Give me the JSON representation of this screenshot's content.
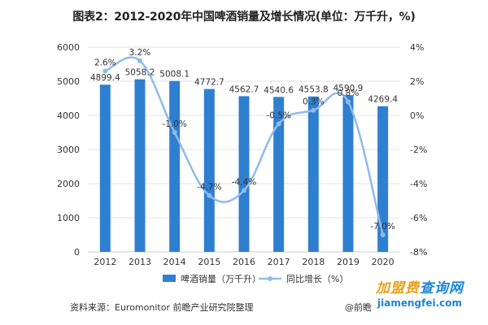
{
  "title": "图表2：2012-2020年中国啤酒销量及增长情况(单位：万千升，%)",
  "source": "资料来源：Euromonitor 前瞻产业研究院整理",
  "watermark": "@前瞻",
  "brand": {
    "name_part1": "加盟费",
    "name_part2": "查询网",
    "url": "jiamengfei.com"
  },
  "colors": {
    "bar": "#2f7fd1",
    "line": "#8fbbea",
    "grid": "#dfe3ea",
    "text": "#333333"
  },
  "chart_data": {
    "type": "bar",
    "categories": [
      "2012",
      "2013",
      "2014",
      "2015",
      "2016",
      "2017",
      "2018",
      "2019",
      "2020"
    ],
    "series": [
      {
        "name": "啤酒销量（万千升）",
        "type": "bar",
        "axis": "left",
        "values": [
          4899.4,
          5058.2,
          5008.1,
          4772.7,
          4562.7,
          4540.6,
          4553.8,
          4590.9,
          4269.4
        ],
        "labels": [
          "4899.4",
          "5058.2",
          "5008.1",
          "4772.7",
          "4562.7",
          "4540.6",
          "4553.8",
          "4590.9",
          "4269.4"
        ]
      },
      {
        "name": "同比增长（%）",
        "type": "line",
        "axis": "right",
        "values": [
          2.6,
          3.2,
          -1.0,
          -4.7,
          -4.4,
          -0.5,
          0.3,
          0.8,
          -7.0
        ],
        "labels": [
          "2.6%",
          "3.2%",
          "-1.0%",
          "-4.7%",
          "-4.4%",
          "-0.5%",
          "0.3%",
          "0.8%",
          "-7.0%"
        ]
      }
    ],
    "y_left": {
      "range": [
        0,
        6000
      ],
      "ticks": [
        "0",
        "1000",
        "2000",
        "3000",
        "4000",
        "5000",
        "6000"
      ]
    },
    "y_right": {
      "range": [
        -8,
        4
      ],
      "ticks": [
        "-8%",
        "-6%",
        "-4%",
        "-2%",
        "0%",
        "2%",
        "4%"
      ]
    },
    "grid": true,
    "legend_position": "bottom"
  }
}
